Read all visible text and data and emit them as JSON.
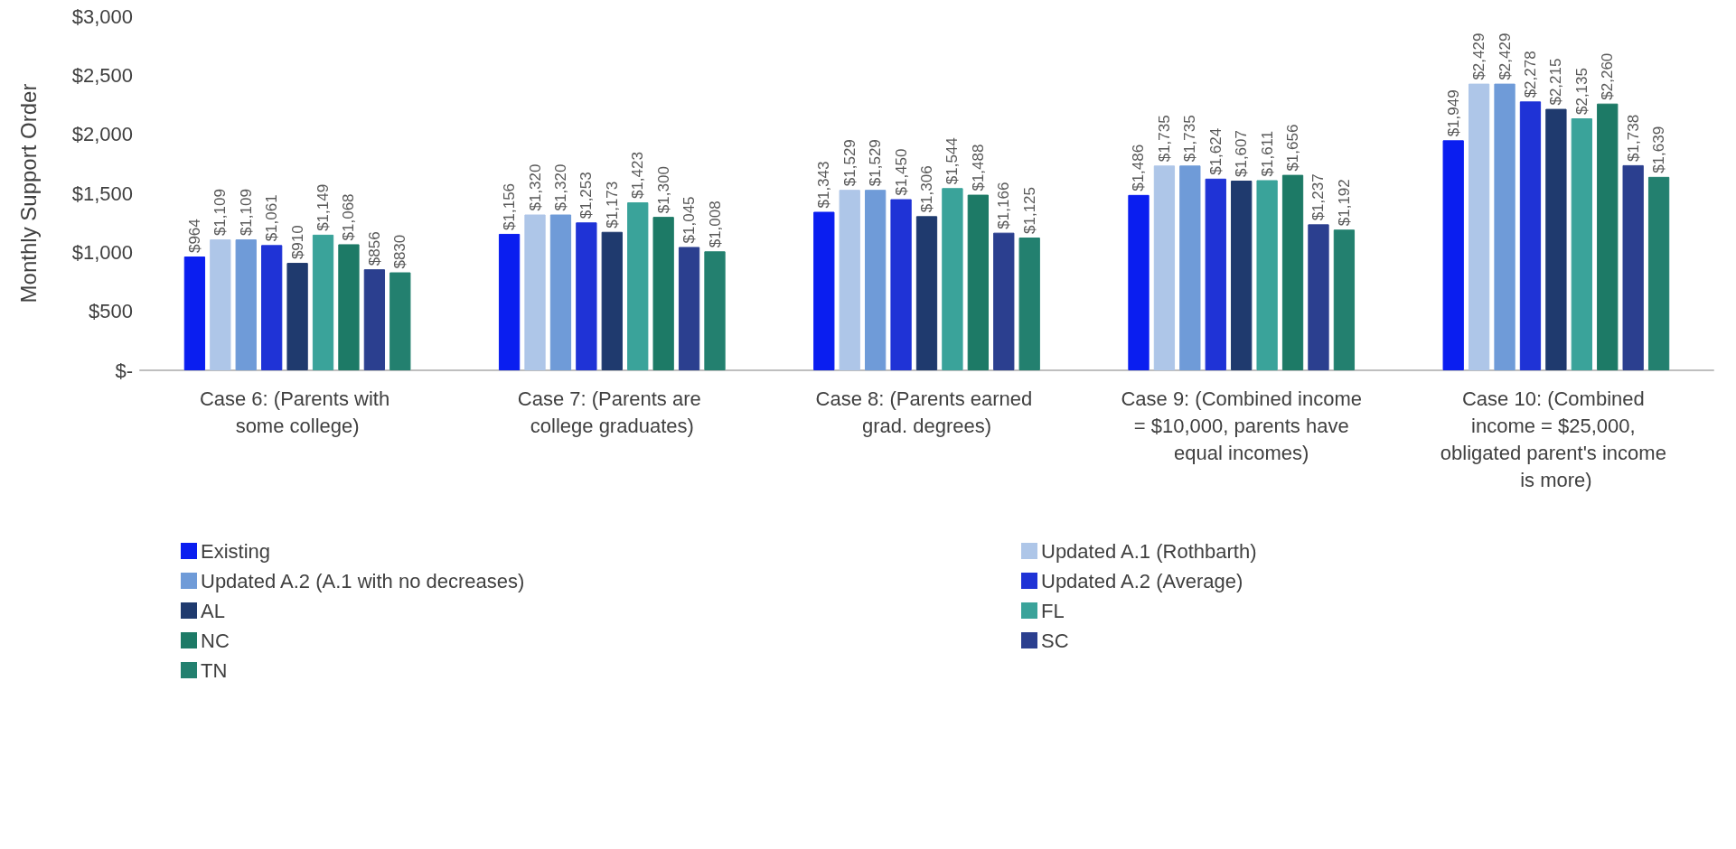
{
  "chart_data": {
    "type": "bar",
    "ylabel": "Monthly Support Order",
    "categories": [
      "Case 6: (Parents with some college)",
      "Case 7: (Parents are college graduates)",
      "Case 8: (Parents earned grad. degrees)",
      "Case 9: (Combined income = $10,000, parents have equal incomes)",
      "Case 10: (Combined income = $25,000, obligated parent's income is more)"
    ],
    "series": [
      {
        "name": "Existing",
        "color": "#0a1ef0",
        "values": [
          964,
          1156,
          1343,
          1486,
          1949
        ],
        "value_labels": [
          "$964",
          "$1,156",
          "$1,343",
          "$1,486",
          "$1,949"
        ]
      },
      {
        "name": "Updated A.1 (Rothbarth)",
        "color": "#aec6e8",
        "values": [
          1109,
          1320,
          1529,
          1735,
          2429
        ],
        "value_labels": [
          "$1,109",
          "$1,320",
          "$1,529",
          "$1,735",
          "$2,429"
        ]
      },
      {
        "name": "Updated A.2 (A.1 with no decreases)",
        "color": "#6f9bd8",
        "values": [
          1109,
          1320,
          1529,
          1735,
          2429
        ],
        "value_labels": [
          "$1,109",
          "$1,320",
          "$1,529",
          "$1,735",
          "$2,429"
        ]
      },
      {
        "name": "Updated A.2 (Average)",
        "color": "#1f33d6",
        "values": [
          1061,
          1253,
          1450,
          1624,
          2278
        ],
        "value_labels": [
          "$1,061",
          "$1,253",
          "$1,450",
          "$1,624",
          "$2,278"
        ]
      },
      {
        "name": "AL",
        "color": "#1f3a6e",
        "values": [
          910,
          1173,
          1306,
          1607,
          2215
        ],
        "value_labels": [
          "$910",
          "$1,173",
          "$1,306",
          "$1,607",
          "$2,215"
        ]
      },
      {
        "name": "FL",
        "color": "#3aa39a",
        "values": [
          1149,
          1423,
          1544,
          1611,
          2135
        ],
        "value_labels": [
          "$1,149",
          "$1,423",
          "$1,544",
          "$1,611",
          "$2,135"
        ]
      },
      {
        "name": "NC",
        "color": "#1d7a66",
        "values": [
          1068,
          1300,
          1488,
          1656,
          2260
        ],
        "value_labels": [
          "$1,068",
          "$1,300",
          "$1,488",
          "$1,656",
          "$2,260"
        ]
      },
      {
        "name": "SC",
        "color": "#2b3f8f",
        "values": [
          856,
          1045,
          1166,
          1237,
          1738
        ],
        "value_labels": [
          "$856",
          "$1,045",
          "$1,166",
          "$1,237",
          "$1,738"
        ]
      },
      {
        "name": "TN",
        "color": "#23806f",
        "values": [
          830,
          1008,
          1125,
          1192,
          1639
        ],
        "value_labels": [
          "$830",
          "$1,008",
          "$1,125",
          "$1,192",
          "$1,639"
        ]
      }
    ],
    "ylim": [
      0,
      3000
    ],
    "yticks": [
      {
        "value": 0,
        "label": "$-"
      },
      {
        "value": 500,
        "label": "$500"
      },
      {
        "value": 1000,
        "label": "$1,000"
      },
      {
        "value": 1500,
        "label": "$1,500"
      },
      {
        "value": 2000,
        "label": "$2,000"
      },
      {
        "value": 2500,
        "label": "$2,500"
      },
      {
        "value": 3000,
        "label": "$3,000"
      }
    ],
    "grid": false,
    "legend": "bottom"
  }
}
